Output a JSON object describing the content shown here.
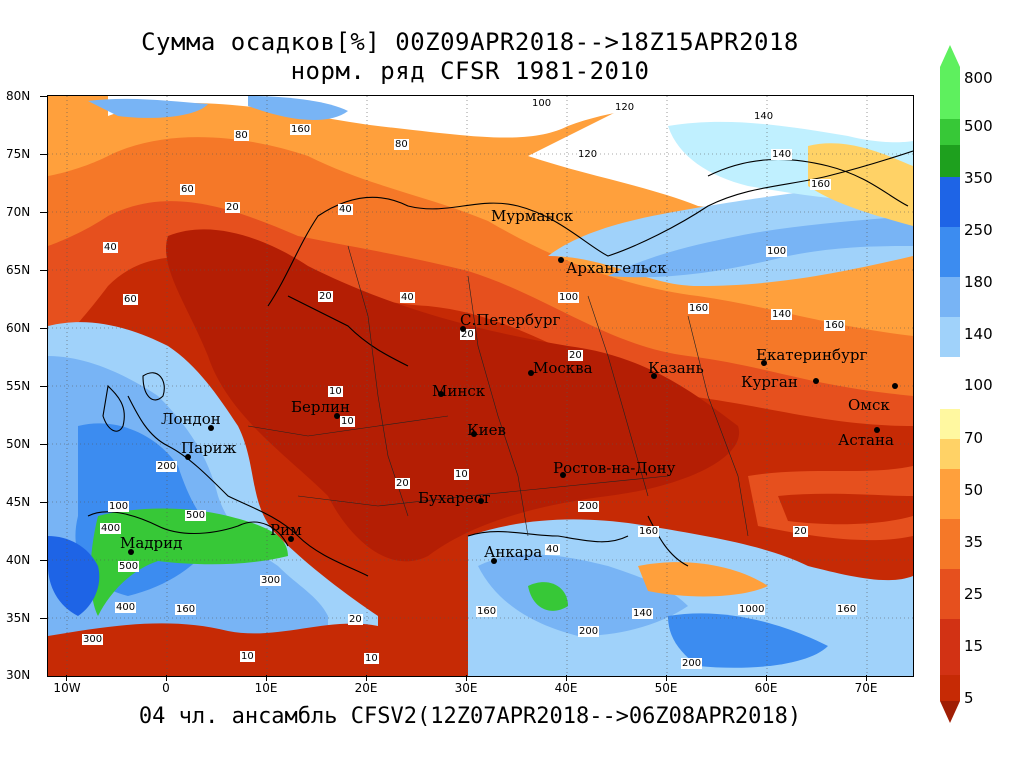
{
  "title": {
    "line1": "Сумма осадков[%] 00Z09APR2018-->18Z15APR2018",
    "line2": "норм. ряд CFSR 1981-2010"
  },
  "footer": "04 чл. ансамбль CFSV2(12Z07APR2018-->06Z08APR2018)",
  "axes": {
    "lat_labels": [
      "80N",
      "75N",
      "70N",
      "65N",
      "60N",
      "55N",
      "50N",
      "45N",
      "40N",
      "35N",
      "30N"
    ],
    "lon_labels": [
      "10W",
      "0",
      "10E",
      "20E",
      "30E",
      "40E",
      "50E",
      "60E",
      "70E"
    ]
  },
  "legend": {
    "labels": [
      "800",
      "500",
      "350",
      "250",
      "180",
      "140",
      "100",
      "70",
      "50",
      "35",
      "25",
      "15",
      "5"
    ],
    "colors": [
      "#5ef05e",
      "#37c837",
      "#1ea01e",
      "#1e64e6",
      "#3c8cf0",
      "#78b4f5",
      "#a0d2fa",
      "#c0f0ff",
      "#ffffff",
      "#fff8a0",
      "#ffd266",
      "#ffa03c",
      "#f57828",
      "#e6501e",
      "#d23214",
      "#c62a05",
      "#a01e05"
    ]
  },
  "cities": [
    {
      "name": "Мурманск"
    },
    {
      "name": "Архангельск"
    },
    {
      "name": "С.Петербург"
    },
    {
      "name": "Москва"
    },
    {
      "name": "Казань"
    },
    {
      "name": "Екатеринбург"
    },
    {
      "name": "Курган"
    },
    {
      "name": "Омск"
    },
    {
      "name": "Астана"
    },
    {
      "name": "Минск"
    },
    {
      "name": "Киев"
    },
    {
      "name": "Берлин"
    },
    {
      "name": "Лондон"
    },
    {
      "name": "Париж"
    },
    {
      "name": "Ростов-на-Дону"
    },
    {
      "name": "Бухарест"
    },
    {
      "name": "Мадрид"
    },
    {
      "name": "Рим"
    },
    {
      "name": "Анкара"
    }
  ],
  "contour_labels": [
    "100",
    "120",
    "140",
    "160",
    "80",
    "60",
    "40",
    "20",
    "10",
    "200",
    "300",
    "400",
    "500",
    "1000"
  ]
}
